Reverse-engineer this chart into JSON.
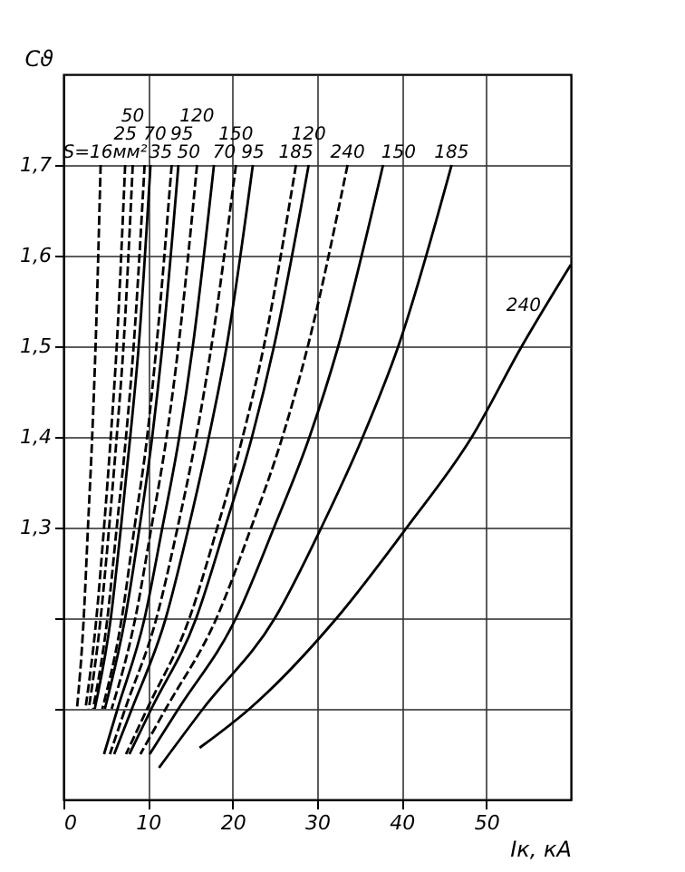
{
  "chart_data": {
    "type": "line",
    "xlabel": "Iк, кА",
    "ylabel": "Cϑ",
    "xlim": [
      0,
      60
    ],
    "xticks": [
      0,
      10,
      20,
      30,
      40,
      50
    ],
    "ylim": [
      1.0,
      1.8
    ],
    "yticks": [
      {
        "value": 1.1,
        "label": null
      },
      {
        "value": 1.2,
        "label": null
      },
      {
        "value": 1.3,
        "label": "1,3"
      },
      {
        "value": 1.4,
        "label": "1,4"
      },
      {
        "value": 1.5,
        "label": "1,5"
      },
      {
        "value": 1.6,
        "label": "1,6"
      },
      {
        "value": 1.7,
        "label": "1,7"
      }
    ],
    "grid": true,
    "series": [
      {
        "name": "S=16мм²",
        "color": "#000000",
        "line_style": "dashed",
        "x": [
          4.4,
          3.8,
          3.4,
          2.9,
          2.4,
          1.6
        ],
        "values": [
          1.7,
          1.5,
          1.4,
          1.3,
          1.2,
          1.1
        ]
      },
      {
        "name": "25",
        "color": "#000000",
        "line_style": "dashed",
        "x": [
          7.3,
          6.3,
          5.6,
          4.8,
          3.9,
          2.6
        ],
        "values": [
          1.7,
          1.5,
          1.4,
          1.3,
          1.2,
          1.1
        ]
      },
      {
        "name": "50",
        "color": "#000000",
        "line_style": "dashed",
        "x": [
          8.2,
          7.1,
          6.3,
          5.4,
          4.4,
          3.0
        ],
        "values": [
          1.7,
          1.5,
          1.4,
          1.3,
          1.2,
          1.1
        ]
      },
      {
        "name": "70",
        "color": "#000000",
        "line_style": "dashed",
        "x": [
          9.6,
          8.3,
          7.4,
          6.3,
          5.2,
          3.5
        ],
        "values": [
          1.7,
          1.5,
          1.4,
          1.3,
          1.2,
          1.1
        ]
      },
      {
        "name": "95",
        "color": "#000000",
        "line_style": "dashed",
        "x": [
          12.8,
          11.0,
          9.9,
          8.4,
          6.9,
          4.6
        ],
        "values": [
          1.7,
          1.5,
          1.4,
          1.3,
          1.2,
          1.1
        ]
      },
      {
        "name": "120",
        "color": "#000000",
        "line_style": "dashed",
        "x": [
          15.8,
          13.6,
          12.2,
          10.4,
          8.5,
          5.7
        ],
        "values": [
          1.7,
          1.5,
          1.4,
          1.3,
          1.2,
          1.1
        ]
      },
      {
        "name": "150",
        "color": "#000000",
        "line_style": "dashed",
        "x": [
          20.4,
          17.5,
          15.7,
          13.5,
          11.0,
          7.3,
          5.5
        ],
        "values": [
          1.7,
          1.5,
          1.4,
          1.3,
          1.2,
          1.1,
          1.05
        ]
      },
      {
        "name": "185",
        "color": "#000000",
        "line_style": "dashed",
        "x": [
          27.5,
          23.7,
          21.2,
          18.2,
          14.9,
          9.9,
          7.4
        ],
        "values": [
          1.7,
          1.5,
          1.4,
          1.3,
          1.2,
          1.1,
          1.05
        ]
      },
      {
        "name": "240",
        "color": "#000000",
        "line_style": "dashed",
        "x": [
          33.6,
          28.9,
          25.9,
          22.2,
          18.1,
          12.1,
          9.1
        ],
        "values": [
          1.7,
          1.5,
          1.4,
          1.3,
          1.2,
          1.1,
          1.05
        ]
      },
      {
        "name": "35",
        "color": "#000000",
        "line_style": "solid",
        "x": [
          10.3,
          8.9,
          7.9,
          6.8,
          5.6,
          3.7
        ],
        "values": [
          1.7,
          1.5,
          1.4,
          1.3,
          1.2,
          1.1
        ]
      },
      {
        "name": "50",
        "color": "#000000",
        "line_style": "solid",
        "x": [
          13.6,
          11.7,
          10.5,
          9.0,
          7.3,
          4.9
        ],
        "values": [
          1.7,
          1.5,
          1.4,
          1.3,
          1.2,
          1.1
        ]
      },
      {
        "name": "70",
        "color": "#000000",
        "line_style": "solid",
        "x": [
          17.8,
          15.3,
          13.7,
          11.7,
          9.6,
          6.4,
          4.8
        ],
        "values": [
          1.7,
          1.5,
          1.4,
          1.3,
          1.2,
          1.1,
          1.05
        ]
      },
      {
        "name": "95",
        "color": "#000000",
        "line_style": "solid",
        "x": [
          22.4,
          19.3,
          17.2,
          14.8,
          12.1,
          8.1,
          6.0
        ],
        "values": [
          1.7,
          1.5,
          1.4,
          1.3,
          1.2,
          1.1,
          1.05
        ]
      },
      {
        "name": "120",
        "color": "#000000",
        "line_style": "solid",
        "x": [
          29.0,
          24.9,
          22.3,
          19.1,
          15.7,
          10.4,
          7.8
        ],
        "values": [
          1.7,
          1.5,
          1.4,
          1.3,
          1.2,
          1.1,
          1.05
        ]
      },
      {
        "name": "150",
        "color": "#000000",
        "line_style": "solid",
        "x": [
          37.8,
          32.5,
          29.1,
          24.9,
          20.4,
          13.6,
          10.2
        ],
        "values": [
          1.7,
          1.5,
          1.4,
          1.3,
          1.2,
          1.1,
          1.05
        ]
      },
      {
        "name": "185",
        "color": "#000000",
        "line_style": "solid",
        "x": [
          45.9,
          39.6,
          35.4,
          30.5,
          25.0,
          16.5,
          11.3
        ],
        "values": [
          1.7,
          1.5,
          1.4,
          1.3,
          1.2,
          1.1,
          1.035
        ]
      },
      {
        "name": "240",
        "color": "#000000",
        "line_style": "solid",
        "x": [
          60,
          54.2,
          48.3,
          40.6,
          32.3,
          22.0,
          16.1
        ],
        "values": [
          1.59,
          1.5,
          1.4,
          1.3,
          1.2,
          1.1,
          1.057
        ]
      }
    ]
  }
}
